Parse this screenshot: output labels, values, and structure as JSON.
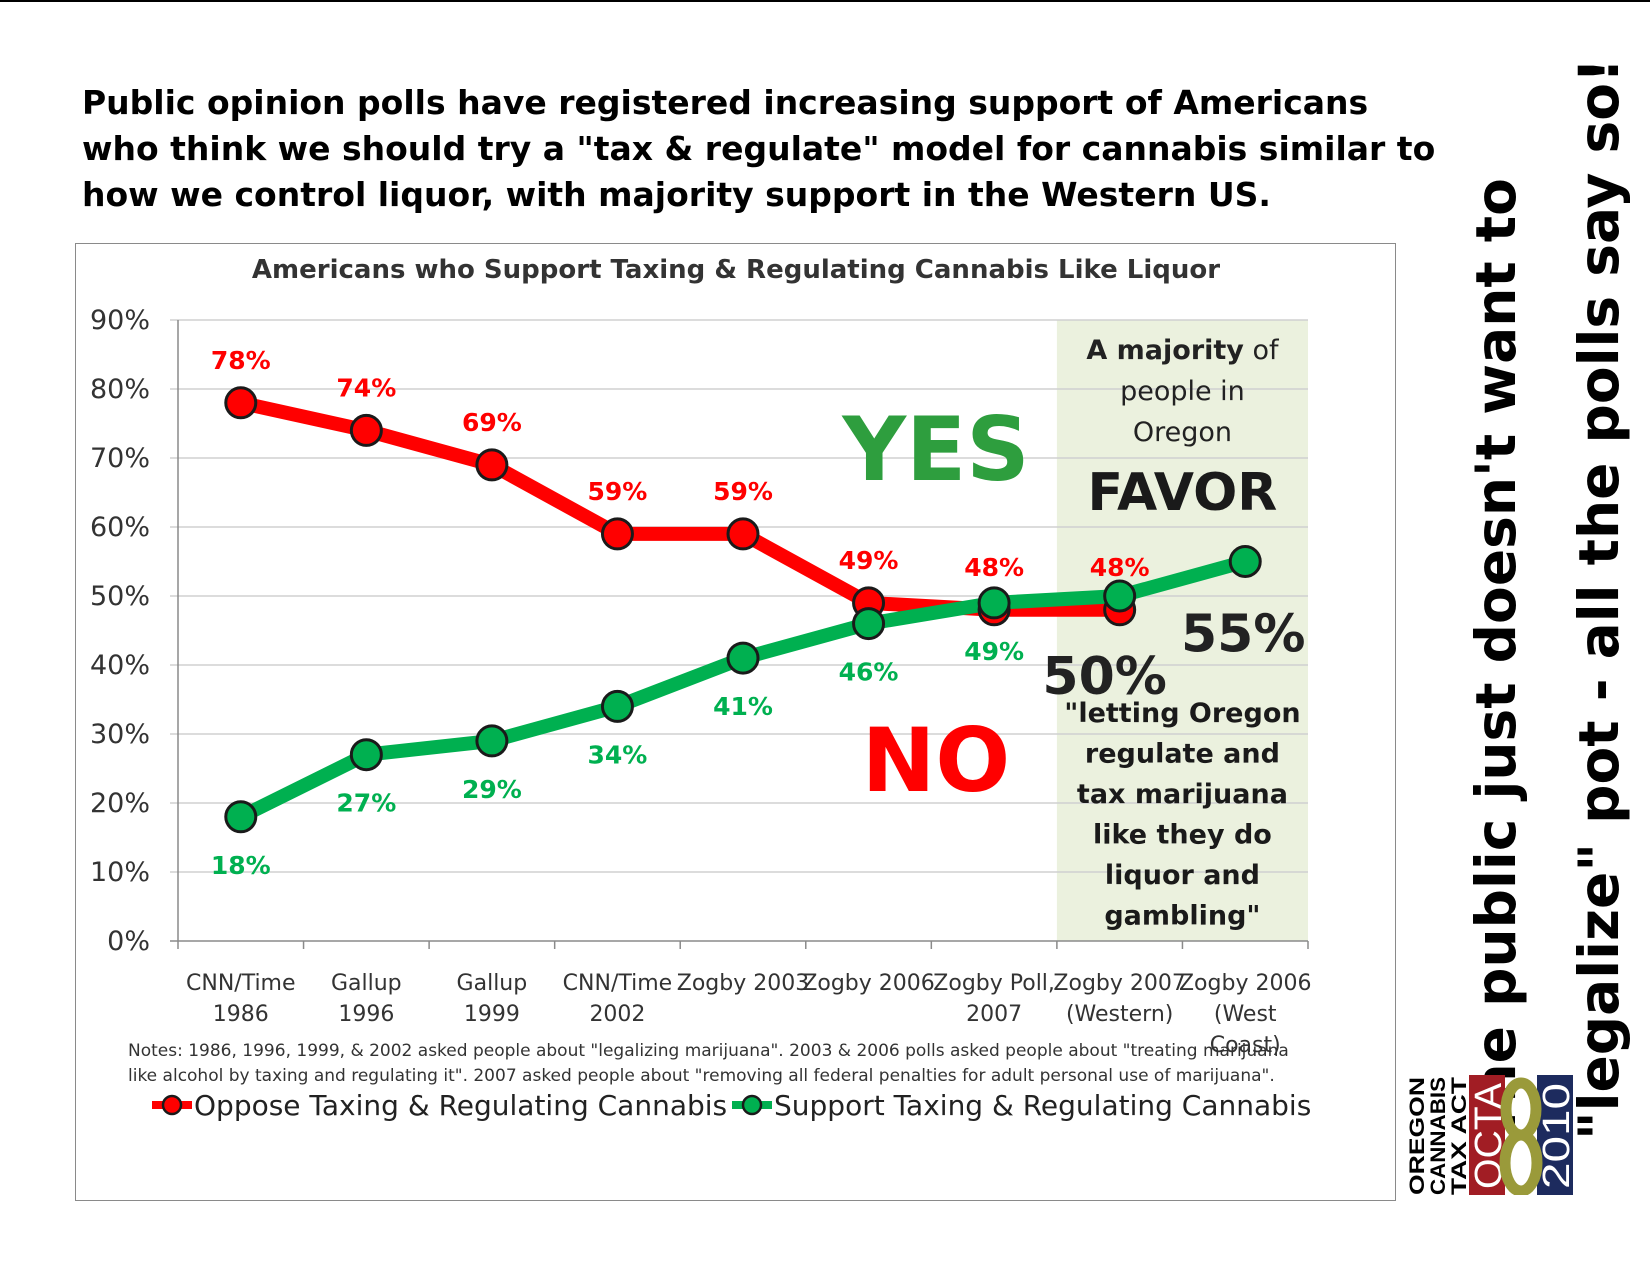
{
  "headline": [
    "Public opinion polls have registered increasing support of  Americans",
    "who think we should try a \"tax & regulate\" model for cannabis similar to",
    "how we control liquor, with majority support in the Western US."
  ],
  "side_text": [
    "The public just doesn't want to",
    "\"legalize\" pot - all the polls say so!"
  ],
  "logo": {
    "words": [
      "OREGON",
      "CANNABIS",
      "TAX ACT"
    ],
    "abbr": "OCTA",
    "year": "2010",
    "colors": {
      "red": "#a11d24",
      "olive": "#9a9a3a",
      "navy": "#1d2b5e"
    }
  },
  "chart_data": {
    "type": "line",
    "title": "Americans who Support Taxing & Regulating Cannabis Like Liquor",
    "categories": [
      [
        "CNN/Time",
        "1986"
      ],
      [
        "Gallup",
        "1996"
      ],
      [
        "Gallup",
        "1999"
      ],
      [
        "CNN/Time",
        "2002"
      ],
      [
        "Zogby 2003",
        ""
      ],
      [
        "Zogby 2006",
        ""
      ],
      [
        "Zogby Poll,",
        "2007"
      ],
      [
        "Zogby 2007",
        "(Western)"
      ],
      [
        "Zogby 2006",
        "(West",
        "Coast)"
      ]
    ],
    "ylim": [
      0,
      90
    ],
    "y_ticks": [
      "0%",
      "10%",
      "20%",
      "30%",
      "40%",
      "50%",
      "60%",
      "70%",
      "80%",
      "90%"
    ],
    "grid": true,
    "series": [
      {
        "name": "Oppose Taxing & Regulating Cannabis",
        "color": "#ff0000",
        "values": [
          78,
          74,
          69,
          59,
          59,
          49,
          48,
          48,
          null
        ],
        "labels": [
          "78%",
          "74%",
          "69%",
          "59%",
          "59%",
          "49%",
          "48%",
          "48%",
          ""
        ]
      },
      {
        "name": "Support Taxing & Regulating Cannabis",
        "color": "#00b050",
        "values": [
          18,
          27,
          29,
          34,
          41,
          46,
          49,
          50,
          55
        ],
        "labels": [
          "18%",
          "27%",
          "29%",
          "34%",
          "41%",
          "46%",
          "49%",
          "50%",
          "55%"
        ]
      }
    ],
    "annotations": {
      "yes": "YES",
      "no": "NO",
      "box_lines": [
        {
          "bold": "A majority",
          "rest": " of"
        },
        {
          "bold": "",
          "rest": "people in"
        },
        {
          "bold": "",
          "rest": "Oregon"
        }
      ],
      "favor": "FAVOR",
      "quote_lines": [
        "\"letting Oregon",
        "regulate and",
        "tax marijuana",
        "like they do",
        "liquor and",
        "gambling\""
      ],
      "box_color": "#ebf1de"
    },
    "notes": [
      "Notes: 1986, 1996, 1999, & 2002 asked people about \"legalizing marijuana\".  2003 & 2006 polls asked people about \"treating marijuana",
      "like alcohol by taxing and regulating it\".  2007 asked people about \"removing all federal penalties for adult personal use of marijuana\"."
    ],
    "legend_position": "bottom"
  }
}
